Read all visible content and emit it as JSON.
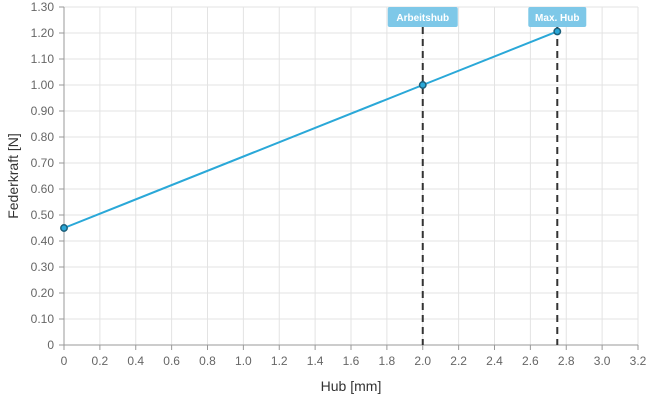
{
  "colors": {
    "line": "#2aa8d8",
    "point_stroke": "#1d5f7a",
    "marker_line": "#333333",
    "marker_box": "#7ec8e8",
    "grid": "#e3e3e3",
    "axis": "#999999"
  },
  "chart_data": {
    "type": "line",
    "xlabel": "Hub [mm]",
    "ylabel": "Federkraft [N]",
    "xlim": [
      0,
      3.2
    ],
    "ylim": [
      0,
      1.3
    ],
    "x_ticks": [
      "0",
      "0.2",
      "0.4",
      "0.6",
      "0.8",
      "1.0",
      "1.2",
      "1.4",
      "1.6",
      "1.8",
      "2.0",
      "2.2",
      "2.4",
      "2.6",
      "2.8",
      "3.0",
      "3.2"
    ],
    "y_ticks": [
      "0",
      "0.10",
      "0.20",
      "0.30",
      "0.40",
      "0.50",
      "0.60",
      "0.70",
      "0.80",
      "0.90",
      "1.00",
      "1.10",
      "1.20",
      "1.30"
    ],
    "grid": true,
    "series": [
      {
        "points": [
          {
            "x": 0,
            "y": 0.45
          },
          {
            "x": 2.0,
            "y": 1.0
          },
          {
            "x": 2.75,
            "y": 1.206
          }
        ]
      }
    ],
    "markers": [
      {
        "label": "Arbeitshub",
        "x": 2.0
      },
      {
        "label": "Max. Hub",
        "x": 2.75
      }
    ]
  }
}
